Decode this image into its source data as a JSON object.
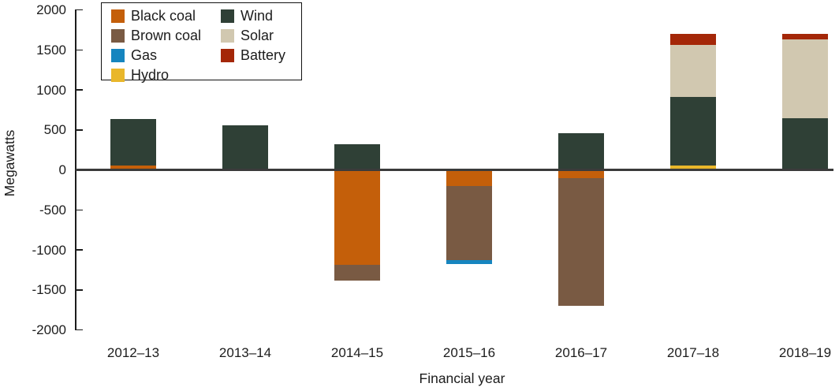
{
  "chart_data": {
    "type": "bar",
    "stacked": true,
    "title": "",
    "xlabel": "Financial year",
    "ylabel": "Megawatts",
    "ylim": [
      -2000,
      2000
    ],
    "yticks": [
      2000,
      1500,
      1000,
      500,
      0,
      -500,
      -1000,
      -1500,
      -2000
    ],
    "grid": false,
    "legend_position": "top-left",
    "legend_columns": [
      [
        "Black coal",
        "Brown coal",
        "Gas",
        "Hydro"
      ],
      [
        "Wind",
        "Solar",
        "Battery"
      ]
    ],
    "categories": [
      "2012–13",
      "2013–14",
      "2014–15",
      "2015–16",
      "2016–17",
      "2017–18",
      "2018–19"
    ],
    "series": [
      {
        "name": "Black coal",
        "color": "#c45f0a",
        "values": [
          50,
          0,
          -1190,
          -200,
          -100,
          0,
          0
        ]
      },
      {
        "name": "Brown coal",
        "color": "#795a43",
        "values": [
          0,
          0,
          -190,
          -930,
          -1600,
          0,
          0
        ]
      },
      {
        "name": "Gas",
        "color": "#1685bf",
        "values": [
          0,
          0,
          0,
          -45,
          0,
          0,
          0
        ]
      },
      {
        "name": "Hydro",
        "color": "#e9b72b",
        "values": [
          0,
          0,
          0,
          0,
          0,
          50,
          0
        ]
      },
      {
        "name": "Wind",
        "color": "#2f4036",
        "values": [
          590,
          560,
          320,
          0,
          460,
          860,
          650
        ]
      },
      {
        "name": "Solar",
        "color": "#d1c8b0",
        "values": [
          0,
          0,
          0,
          0,
          0,
          650,
          980
        ]
      },
      {
        "name": "Battery",
        "color": "#a42708",
        "values": [
          0,
          0,
          0,
          0,
          0,
          140,
          70
        ]
      }
    ],
    "colors": {
      "axis": "#1c1c1c",
      "zero_line": "#3b3b3b",
      "text": "#1c1c1c"
    }
  }
}
